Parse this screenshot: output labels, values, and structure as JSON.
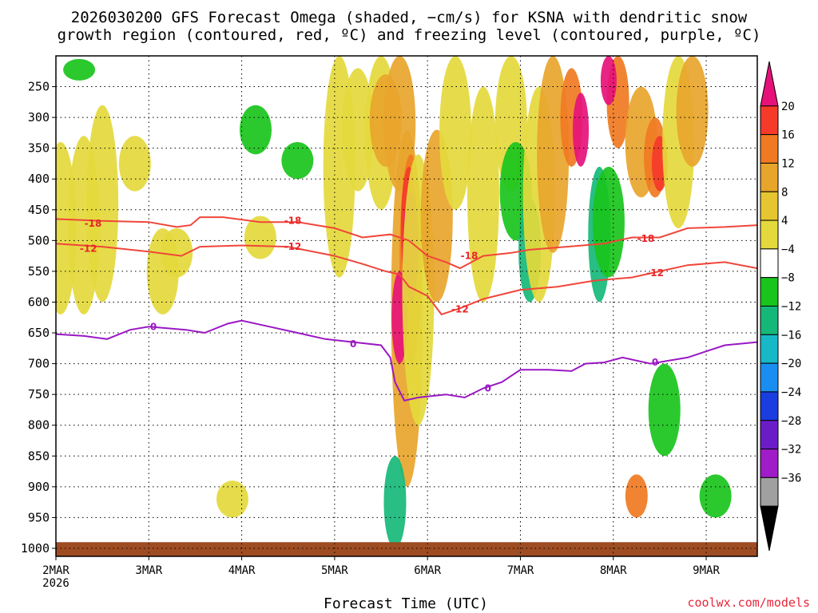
{
  "title_line1": "2026030200 GFS Forecast Omega (shaded, −cm/s) for KSNA with dendritic snow",
  "title_line2": "growth region (contoured, red, ºC) and freezing level (contoured, purple, ºC)",
  "credit": "coolwx.com/models",
  "chart_data": {
    "type": "heatmap",
    "xlabel": "Forecast Time (UTC)",
    "ylabel": "Pressure (hPa)",
    "x_ticks": [
      {
        "label": "2MAR",
        "day": 0
      },
      {
        "label": "3MAR",
        "day": 1
      },
      {
        "label": "4MAR",
        "day": 2
      },
      {
        "label": "5MAR",
        "day": 3
      },
      {
        "label": "6MAR",
        "day": 4
      },
      {
        "label": "7MAR",
        "day": 5
      },
      {
        "label": "8MAR",
        "day": 6
      },
      {
        "label": "9MAR",
        "day": 7
      }
    ],
    "x_year": "2026",
    "x_range_days": [
      0,
      7.55
    ],
    "y_ticks": [
      250,
      300,
      350,
      400,
      450,
      500,
      550,
      600,
      650,
      700,
      750,
      800,
      850,
      900,
      950,
      1000
    ],
    "y_range_hpa": [
      200,
      1013
    ],
    "colorbar": {
      "labels": [
        "20",
        "16",
        "12",
        "8",
        "4",
        "−4",
        "−8",
        "−12",
        "−16",
        "−20",
        "−24",
        "−28",
        "−32",
        "−36"
      ],
      "colors": [
        "#e6127a",
        "#f53a2a",
        "#f07a22",
        "#e8a52c",
        "#e6c630",
        "#e4d93c",
        "#ffffff",
        "#19c41c",
        "#16b87a",
        "#17b9c7",
        "#1a8ef0",
        "#1a3de0",
        "#6a1cc8",
        "#a01cc8",
        "#a0a0a0",
        "#000000"
      ]
    },
    "omega_shading": [
      {
        "day": 0.05,
        "p_top": 340,
        "p_bot": 620,
        "value": 4
      },
      {
        "day": 0.3,
        "p_top": 330,
        "p_bot": 620,
        "value": 4
      },
      {
        "day": 0.5,
        "p_top": 280,
        "p_bot": 600,
        "value": 4
      },
      {
        "day": 0.25,
        "p_top": 205,
        "p_bot": 240,
        "value": -8
      },
      {
        "day": 1.15,
        "p_top": 480,
        "p_bot": 620,
        "value": 4
      },
      {
        "day": 1.3,
        "p_top": 480,
        "p_bot": 560,
        "value": 4
      },
      {
        "day": 0.85,
        "p_top": 330,
        "p_bot": 420,
        "value": 4
      },
      {
        "day": 1.9,
        "p_top": 890,
        "p_bot": 950,
        "value": 4
      },
      {
        "day": 2.2,
        "p_top": 460,
        "p_bot": 530,
        "value": 4
      },
      {
        "day": 2.6,
        "p_top": 340,
        "p_bot": 400,
        "value": -8
      },
      {
        "day": 2.15,
        "p_top": 280,
        "p_bot": 360,
        "value": -8
      },
      {
        "day": 3.05,
        "p_top": 200,
        "p_bot": 560,
        "value": 4
      },
      {
        "day": 3.25,
        "p_top": 220,
        "p_bot": 420,
        "value": 4
      },
      {
        "day": 3.5,
        "p_top": 200,
        "p_bot": 450,
        "value": 4
      },
      {
        "day": 3.55,
        "p_top": 230,
        "p_bot": 380,
        "value": 8
      },
      {
        "day": 3.7,
        "p_top": 200,
        "p_bot": 420,
        "value": 8
      },
      {
        "day": 3.78,
        "p_top": 320,
        "p_bot": 900,
        "value": 8
      },
      {
        "day": 3.82,
        "p_top": 360,
        "p_bot": 700,
        "value": 12
      },
      {
        "day": 3.8,
        "p_top": 380,
        "p_bot": 580,
        "value": 16
      },
      {
        "day": 3.7,
        "p_top": 550,
        "p_bot": 700,
        "value": 20
      },
      {
        "day": 3.82,
        "p_top": 420,
        "p_bot": 600,
        "value": 20
      },
      {
        "day": 3.9,
        "p_top": 360,
        "p_bot": 800,
        "value": 4
      },
      {
        "day": 3.65,
        "p_top": 850,
        "p_bot": 1000,
        "value": -12
      },
      {
        "day": 4.1,
        "p_top": 320,
        "p_bot": 600,
        "value": 8
      },
      {
        "day": 4.3,
        "p_top": 200,
        "p_bot": 450,
        "value": 4
      },
      {
        "day": 4.6,
        "p_top": 250,
        "p_bot": 600,
        "value": 4
      },
      {
        "day": 4.9,
        "p_top": 200,
        "p_bot": 420,
        "value": 4
      },
      {
        "day": 4.95,
        "p_top": 340,
        "p_bot": 500,
        "value": -8
      },
      {
        "day": 5.1,
        "p_top": 430,
        "p_bot": 600,
        "value": -12
      },
      {
        "day": 5.2,
        "p_top": 250,
        "p_bot": 600,
        "value": 4
      },
      {
        "day": 5.35,
        "p_top": 200,
        "p_bot": 520,
        "value": 8
      },
      {
        "day": 5.55,
        "p_top": 220,
        "p_bot": 380,
        "value": 12
      },
      {
        "day": 5.65,
        "p_top": 260,
        "p_bot": 380,
        "value": 20
      },
      {
        "day": 5.85,
        "p_top": 380,
        "p_bot": 600,
        "value": -12
      },
      {
        "day": 5.95,
        "p_top": 380,
        "p_bot": 560,
        "value": -8
      },
      {
        "day": 6.05,
        "p_top": 200,
        "p_bot": 350,
        "value": 12
      },
      {
        "day": 5.95,
        "p_top": 200,
        "p_bot": 280,
        "value": 20
      },
      {
        "day": 6.3,
        "p_top": 250,
        "p_bot": 430,
        "value": 8
      },
      {
        "day": 6.45,
        "p_top": 300,
        "p_bot": 430,
        "value": 12
      },
      {
        "day": 6.5,
        "p_top": 330,
        "p_bot": 420,
        "value": 16
      },
      {
        "day": 6.55,
        "p_top": 700,
        "p_bot": 850,
        "value": -8
      },
      {
        "day": 6.7,
        "p_top": 200,
        "p_bot": 480,
        "value": 4
      },
      {
        "day": 6.85,
        "p_top": 200,
        "p_bot": 380,
        "value": 8
      },
      {
        "day": 7.1,
        "p_top": 880,
        "p_bot": 950,
        "value": -8
      },
      {
        "day": 6.25,
        "p_top": 880,
        "p_bot": 950,
        "value": 12
      }
    ],
    "dgz_contours": [
      {
        "level": "-18",
        "color": "#f0463a",
        "points": [
          [
            0,
            465
          ],
          [
            0.5,
            468
          ],
          [
            1.0,
            470
          ],
          [
            1.3,
            478
          ],
          [
            1.45,
            475
          ],
          [
            1.55,
            462
          ],
          [
            1.8,
            462
          ],
          [
            2.2,
            470
          ],
          [
            2.6,
            470
          ],
          [
            3.0,
            480
          ],
          [
            3.3,
            495
          ],
          [
            3.6,
            490
          ],
          [
            3.8,
            500
          ],
          [
            4.0,
            525
          ],
          [
            4.2,
            535
          ],
          [
            4.35,
            545
          ],
          [
            4.6,
            525
          ],
          [
            4.9,
            520
          ],
          [
            5.1,
            515
          ],
          [
            5.5,
            510
          ],
          [
            5.9,
            505
          ],
          [
            6.2,
            495
          ],
          [
            6.5,
            495
          ],
          [
            6.8,
            480
          ],
          [
            7.2,
            478
          ],
          [
            7.55,
            475
          ]
        ]
      },
      {
        "level": "-12",
        "color": "#f0463a",
        "points": [
          [
            0,
            505
          ],
          [
            0.5,
            510
          ],
          [
            1.0,
            518
          ],
          [
            1.35,
            525
          ],
          [
            1.55,
            510
          ],
          [
            2.0,
            508
          ],
          [
            2.5,
            510
          ],
          [
            3.0,
            525
          ],
          [
            3.3,
            538
          ],
          [
            3.55,
            550
          ],
          [
            3.7,
            555
          ],
          [
            3.8,
            575
          ],
          [
            4.0,
            590
          ],
          [
            4.15,
            620
          ],
          [
            4.35,
            610
          ],
          [
            4.6,
            595
          ],
          [
            5.0,
            580
          ],
          [
            5.4,
            575
          ],
          [
            5.8,
            565
          ],
          [
            6.2,
            560
          ],
          [
            6.5,
            550
          ],
          [
            6.8,
            540
          ],
          [
            7.2,
            535
          ],
          [
            7.55,
            545
          ]
        ]
      }
    ],
    "freezing_contours": [
      {
        "level": "0",
        "color": "#9a17c4",
        "points": [
          [
            0,
            652
          ],
          [
            0.3,
            655
          ],
          [
            0.55,
            660
          ],
          [
            0.8,
            645
          ],
          [
            1.0,
            640
          ],
          [
            1.4,
            645
          ],
          [
            1.6,
            650
          ],
          [
            1.85,
            635
          ],
          [
            2.0,
            630
          ],
          [
            2.3,
            640
          ],
          [
            2.6,
            650
          ],
          [
            2.9,
            660
          ],
          [
            3.2,
            665
          ],
          [
            3.5,
            670
          ],
          [
            3.6,
            690
          ],
          [
            3.65,
            730
          ],
          [
            3.75,
            760
          ],
          [
            3.9,
            755
          ],
          [
            4.2,
            750
          ],
          [
            4.4,
            755
          ],
          [
            4.6,
            740
          ],
          [
            4.8,
            730
          ],
          [
            5.0,
            710
          ],
          [
            5.3,
            710
          ],
          [
            5.55,
            712
          ],
          [
            5.7,
            700
          ],
          [
            5.9,
            698
          ],
          [
            6.1,
            690
          ],
          [
            6.4,
            700
          ],
          [
            6.8,
            690
          ],
          [
            7.0,
            680
          ],
          [
            7.2,
            670
          ],
          [
            7.55,
            665
          ]
        ]
      }
    ],
    "contour_labels": [
      {
        "text": "-18",
        "day": 0.4,
        "p": 472,
        "color": "red"
      },
      {
        "text": "-18",
        "day": 2.55,
        "p": 468,
        "color": "red"
      },
      {
        "text": "-18",
        "day": 4.45,
        "p": 525,
        "color": "red"
      },
      {
        "text": "-18",
        "day": 6.35,
        "p": 497,
        "color": "red"
      },
      {
        "text": "-12",
        "day": 0.35,
        "p": 513,
        "color": "red"
      },
      {
        "text": "-12",
        "day": 2.55,
        "p": 510,
        "color": "red"
      },
      {
        "text": "-12",
        "day": 4.35,
        "p": 612,
        "color": "red"
      },
      {
        "text": "-12",
        "day": 6.45,
        "p": 553,
        "color": "red"
      },
      {
        "text": "0",
        "day": 1.05,
        "p": 640,
        "color": "purple"
      },
      {
        "text": "0",
        "day": 3.2,
        "p": 668,
        "color": "purple"
      },
      {
        "text": "0",
        "day": 4.65,
        "p": 740,
        "color": "purple"
      },
      {
        "text": "0",
        "day": 6.45,
        "p": 698,
        "color": "purple"
      }
    ],
    "surface": {
      "p_top": 990,
      "color": "#9e4c22"
    }
  }
}
